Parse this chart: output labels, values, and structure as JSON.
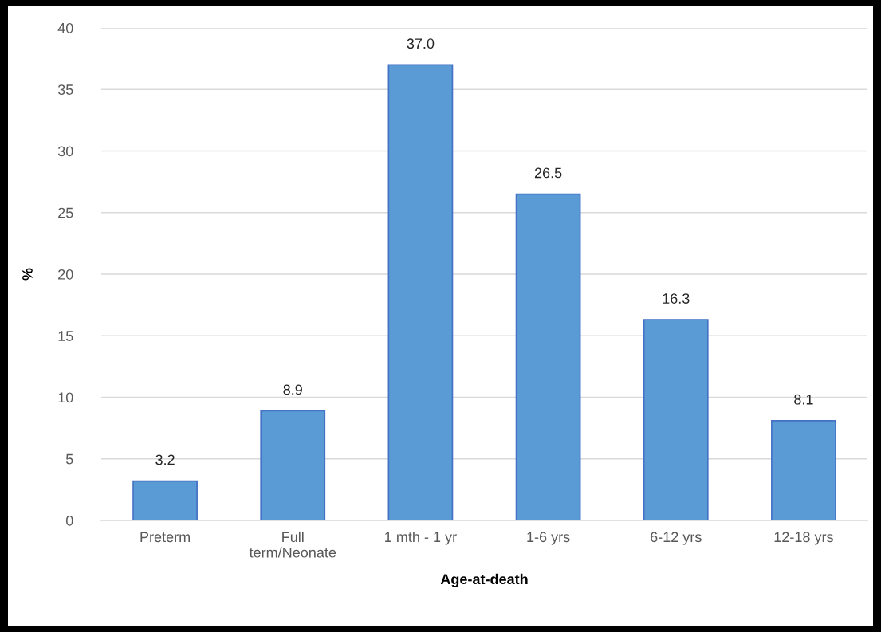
{
  "chart_data": {
    "type": "bar",
    "xlabel": "Age-at-death",
    "ylabel": "%",
    "categories": [
      "Preterm",
      "Full\nterm/Neonate",
      "1 mth - 1 yr",
      "1-6 yrs",
      "6-12 yrs",
      "12-18 yrs"
    ],
    "values": [
      3.2,
      8.9,
      37.0,
      26.5,
      16.3,
      8.1
    ],
    "value_labels": [
      "3.2",
      "8.9",
      "37.0",
      "26.5",
      "16.3",
      "8.1"
    ],
    "color": "#5b9bd5",
    "ylim": [
      0,
      40
    ],
    "yticks": [
      0,
      5,
      10,
      15,
      20,
      25,
      30,
      35,
      40
    ],
    "grid": "y",
    "legend": false
  }
}
